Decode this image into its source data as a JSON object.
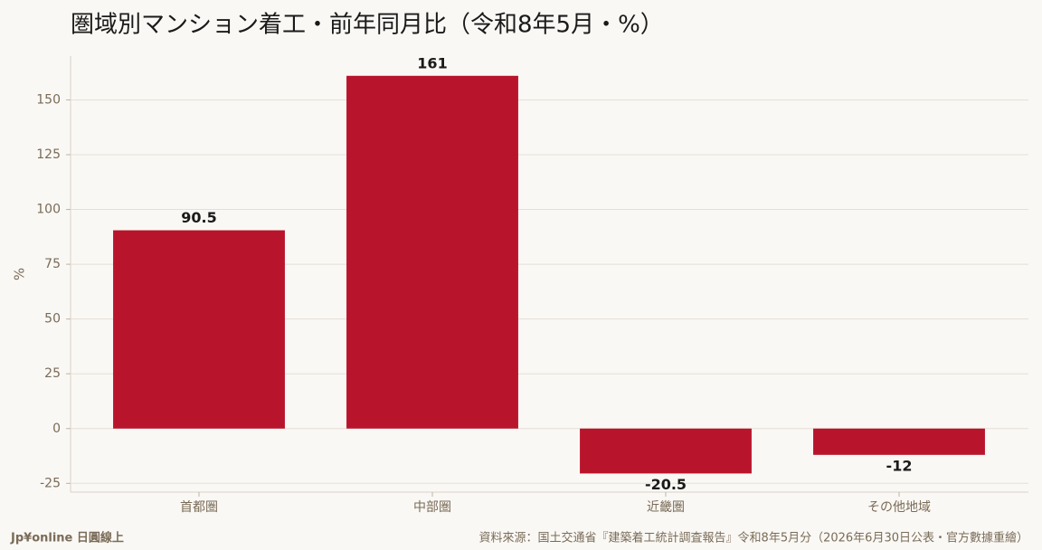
{
  "chart_data": {
    "type": "bar",
    "title": "圏域別マンション着工・前年同月比（令和8年5月・%）",
    "y_label": "%",
    "categories": [
      "首都圏",
      "中部圏",
      "近畿圏",
      "その他地域"
    ],
    "values": [
      90.5,
      161,
      -20.5,
      -12
    ],
    "color": "#b8152d",
    "ylim": [
      -29,
      170
    ],
    "yticks": [
      -25,
      0,
      25,
      50,
      75,
      100,
      125,
      150
    ],
    "grid": true,
    "brand": "Jp¥online 日圓線上",
    "source": "資料來源：国土交通省『建築着工統計調査報告』令和8年5月分（2026年6月30日公表・官方數據重繪）"
  }
}
